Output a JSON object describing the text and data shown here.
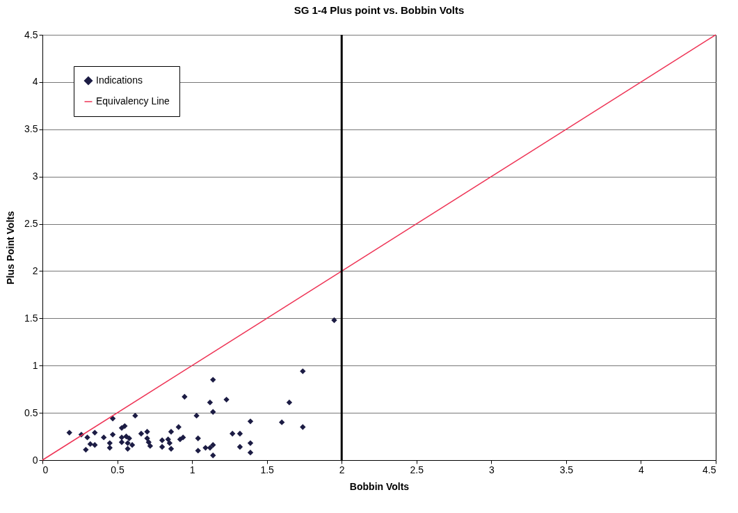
{
  "chart_data": {
    "type": "scatter",
    "title": "SG 1-4 Plus point vs. Bobbin Volts",
    "xlabel": "Bobbin Volts",
    "ylabel": "Plus Point Volts",
    "xlim": [
      0,
      4.5
    ],
    "xticks": [
      0,
      0.5,
      1,
      1.5,
      2,
      2.5,
      3,
      3.5,
      4,
      4.5
    ],
    "ylim": [
      0,
      4.5
    ],
    "yticks": [
      0,
      0.5,
      1,
      1.5,
      2,
      2.5,
      3,
      3.5,
      4,
      4.5
    ],
    "grid": "y",
    "legend": "top left",
    "ref_lines": [
      {
        "axis": "x",
        "value": 2,
        "color": "#000000"
      }
    ],
    "series": [
      {
        "name": "Indications",
        "marker": "diamond",
        "color": "#1c1c44",
        "x": [
          0.18,
          0.26,
          0.3,
          0.35,
          0.32,
          0.35,
          0.29,
          0.47,
          0.41,
          0.47,
          0.45,
          0.45,
          0.53,
          0.55,
          0.53,
          0.56,
          0.58,
          0.53,
          0.57,
          0.6,
          0.57,
          0.62,
          0.66,
          0.7,
          0.7,
          0.71,
          0.72,
          0.8,
          0.8,
          0.84,
          0.85,
          0.86,
          0.86,
          0.91,
          0.92,
          0.94,
          0.95,
          1.03,
          1.04,
          1.04,
          1.14,
          1.12,
          1.23,
          1.14,
          1.09,
          1.12,
          1.14,
          1.14,
          1.27,
          1.32,
          1.32,
          1.39,
          1.39,
          1.39,
          1.6,
          1.65,
          1.74,
          1.74,
          1.95
        ],
        "values": [
          0.29,
          0.27,
          0.24,
          0.29,
          0.17,
          0.16,
          0.11,
          0.44,
          0.24,
          0.27,
          0.18,
          0.13,
          0.34,
          0.36,
          0.24,
          0.25,
          0.23,
          0.19,
          0.18,
          0.16,
          0.12,
          0.47,
          0.28,
          0.3,
          0.23,
          0.19,
          0.15,
          0.21,
          0.14,
          0.22,
          0.18,
          0.3,
          0.12,
          0.35,
          0.22,
          0.24,
          0.67,
          0.47,
          0.23,
          0.1,
          0.85,
          0.61,
          0.64,
          0.51,
          0.13,
          0.13,
          0.16,
          0.05,
          0.28,
          0.28,
          0.14,
          0.41,
          0.18,
          0.08,
          0.4,
          0.61,
          0.94,
          0.35,
          1.48
        ]
      },
      {
        "name": "Equivalency Line",
        "type": "line",
        "color": "#ee3355",
        "x": [
          0,
          4.5
        ],
        "values": [
          0,
          4.5
        ]
      }
    ]
  }
}
